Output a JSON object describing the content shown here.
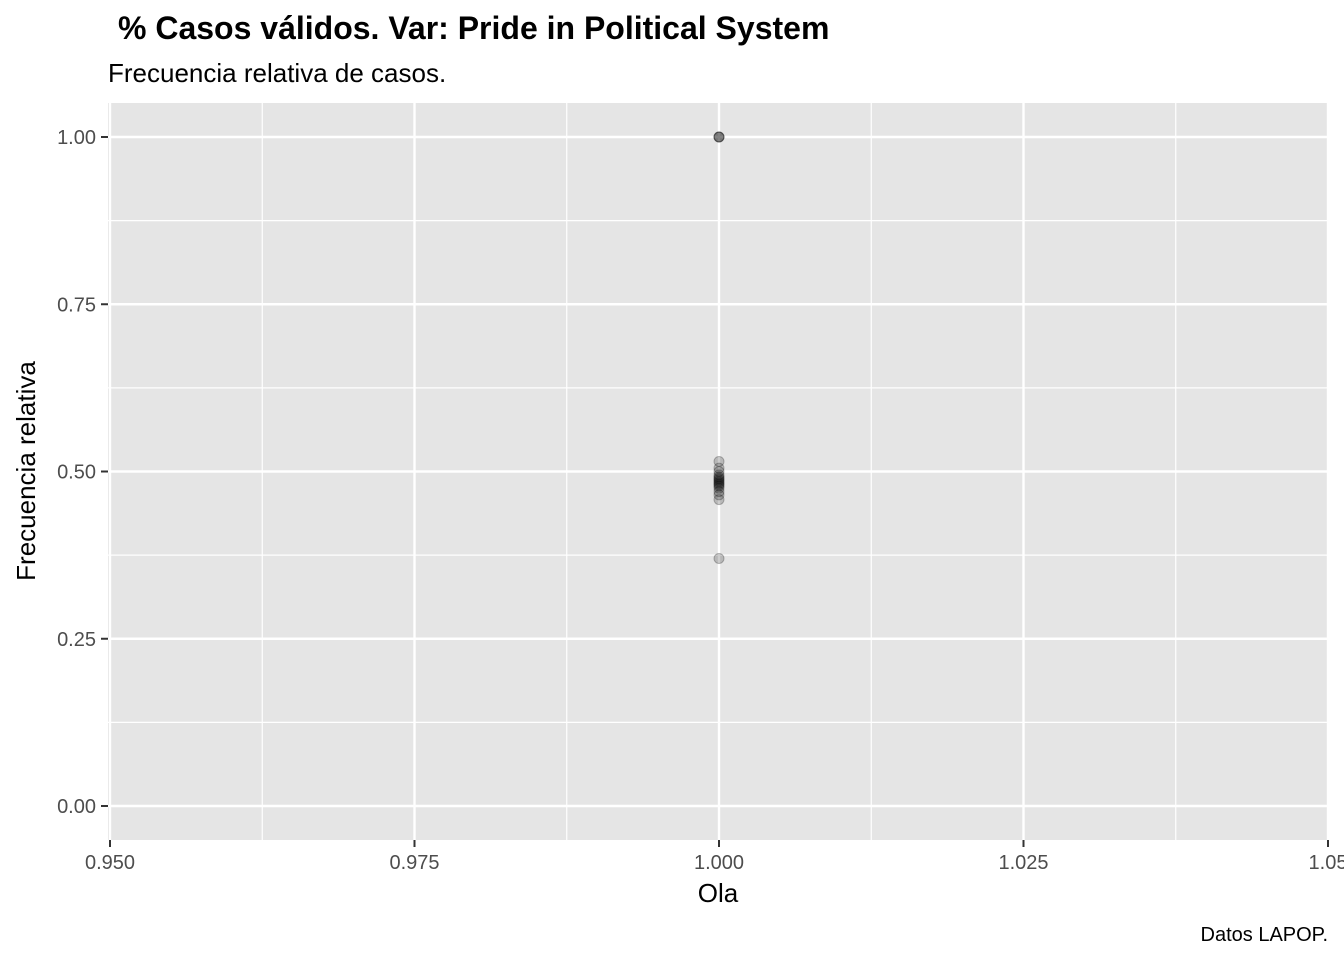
{
  "chart_data": {
    "type": "scatter",
    "title": "% Casos válidos. Var: Pride in Political System",
    "subtitle": "Frecuencia relativa de casos.",
    "xlabel": "Ola",
    "ylabel": "Frecuencia relativa",
    "caption": "Datos LAPOP.",
    "xlim": [
      0.95,
      1.05
    ],
    "ylim": [
      0.0,
      1.0
    ],
    "x_ticks": [
      0.95,
      0.975,
      1.0,
      1.025,
      1.05
    ],
    "x_tick_labels": [
      "0.950",
      "0.975",
      "1.000",
      "1.025",
      "1.05"
    ],
    "y_ticks": [
      0.0,
      0.25,
      0.5,
      0.75,
      1.0
    ],
    "y_tick_labels": [
      "0.00",
      "0.25",
      "0.50",
      "0.75",
      "1.00"
    ],
    "grid": true,
    "colors": {
      "panel": "#e5e5e5",
      "grid": "#ffffff",
      "point": "#000000"
    },
    "points": [
      {
        "x": 1.0,
        "y": 1.0
      },
      {
        "x": 1.0,
        "y": 1.0
      },
      {
        "x": 1.0,
        "y": 1.0
      },
      {
        "x": 1.0,
        "y": 0.515
      },
      {
        "x": 1.0,
        "y": 0.505
      },
      {
        "x": 1.0,
        "y": 0.5
      },
      {
        "x": 1.0,
        "y": 0.495
      },
      {
        "x": 1.0,
        "y": 0.492
      },
      {
        "x": 1.0,
        "y": 0.49
      },
      {
        "x": 1.0,
        "y": 0.488
      },
      {
        "x": 1.0,
        "y": 0.486
      },
      {
        "x": 1.0,
        "y": 0.484
      },
      {
        "x": 1.0,
        "y": 0.482
      },
      {
        "x": 1.0,
        "y": 0.48
      },
      {
        "x": 1.0,
        "y": 0.478
      },
      {
        "x": 1.0,
        "y": 0.475
      },
      {
        "x": 1.0,
        "y": 0.47
      },
      {
        "x": 1.0,
        "y": 0.465
      },
      {
        "x": 1.0,
        "y": 0.458
      },
      {
        "x": 1.0,
        "y": 0.37
      }
    ]
  }
}
